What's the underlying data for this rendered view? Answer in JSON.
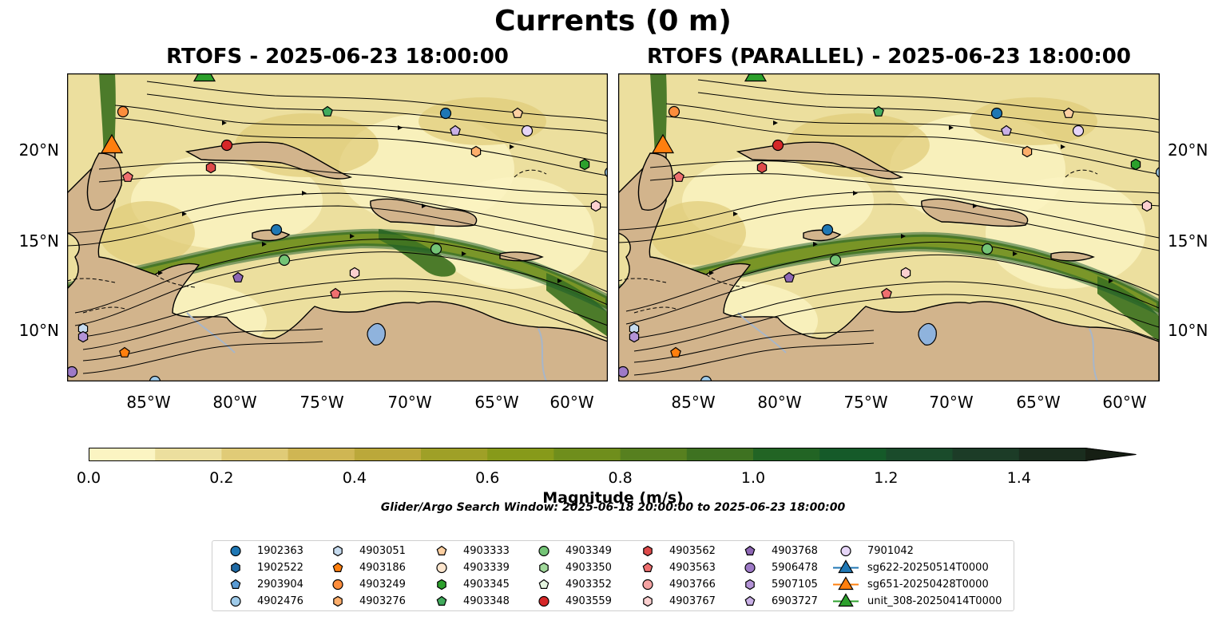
{
  "figure": {
    "title": "Currents (0 m)",
    "panels": [
      {
        "title": "RTOFS - 2025-06-23 18:00:00",
        "ocean_tone": "rtofs"
      },
      {
        "title": "RTOFS (PARALLEL) - 2025-06-23 18:00:00",
        "ocean_tone": "parallel"
      }
    ],
    "lon_ticks": [
      "85°W",
      "80°W",
      "75°W",
      "70°W",
      "65°W",
      "60°W"
    ],
    "lat_ticks": [
      "20°N",
      "15°N",
      "10°N"
    ],
    "colorbar": {
      "label": "Magnitude (m/s)",
      "ticks": [
        "0.0",
        "0.2",
        "0.4",
        "0.6",
        "0.8",
        "1.0",
        "1.2",
        "1.4"
      ],
      "range": [
        0,
        1.5
      ],
      "levels": [
        "#fbf4c2",
        "#ecdf9e",
        "#e0cb77",
        "#cfb653",
        "#bba83a",
        "#9fa027",
        "#879a1a",
        "#6f8e1c",
        "#57801f",
        "#3e7221",
        "#226424",
        "#155a29",
        "#1a4b2b",
        "#1c3c27",
        "#1a2d1e",
        "#161f14"
      ],
      "extend": "max"
    },
    "search_window": "Glider/Argo Search Window: 2025-06-18 20:00:00 to 2025-06-23 18:00:00",
    "colors": {
      "land": "#d2b48c",
      "lake": "#8fb3dd",
      "river": "#a7b6c9"
    }
  },
  "legend": [
    {
      "label": "1902363",
      "marker": "circle",
      "color": "#1f77b4"
    },
    {
      "label": "1902522",
      "marker": "hexagon",
      "color": "#1f6aa5"
    },
    {
      "label": "2903904",
      "marker": "pentagon",
      "color": "#5a9bd4"
    },
    {
      "label": "4902476",
      "marker": "circle",
      "color": "#9ecae9"
    },
    {
      "label": "4903051",
      "marker": "hexagon",
      "color": "#c6dbef"
    },
    {
      "label": "4903186",
      "marker": "pentagon",
      "color": "#ff7f0e"
    },
    {
      "label": "4903249",
      "marker": "circle",
      "color": "#fd8d3c"
    },
    {
      "label": "4903276",
      "marker": "hexagon",
      "color": "#fdae6b"
    },
    {
      "label": "4903333",
      "marker": "pentagon",
      "color": "#fdd0a2"
    },
    {
      "label": "4903339",
      "marker": "circle",
      "color": "#fee6ce"
    },
    {
      "label": "4903345",
      "marker": "hexagon",
      "color": "#2ca02c"
    },
    {
      "label": "4903348",
      "marker": "pentagon",
      "color": "#41ab5d"
    },
    {
      "label": "4903349",
      "marker": "circle",
      "color": "#74c476"
    },
    {
      "label": "4903350",
      "marker": "hexagon",
      "color": "#a1d99b"
    },
    {
      "label": "4903352",
      "marker": "pentagon",
      "color": "#e5f5e0"
    },
    {
      "label": "4903559",
      "marker": "circle",
      "color": "#d62728"
    },
    {
      "label": "4903562",
      "marker": "hexagon",
      "color": "#de4a4a"
    },
    {
      "label": "4903563",
      "marker": "pentagon",
      "color": "#ef6f6f"
    },
    {
      "label": "4903766",
      "marker": "circle",
      "color": "#f4a3a3"
    },
    {
      "label": "4903767",
      "marker": "hexagon",
      "color": "#fcd0d0"
    },
    {
      "label": "4903768",
      "marker": "pentagon",
      "color": "#8e67b5"
    },
    {
      "label": "5906478",
      "marker": "circle",
      "color": "#9e7ac7"
    },
    {
      "label": "5907105",
      "marker": "hexagon",
      "color": "#b393d6"
    },
    {
      "label": "6903727",
      "marker": "pentagon",
      "color": "#c9b0e6"
    },
    {
      "label": "7901042",
      "marker": "circle",
      "color": "#e6d5f7"
    },
    {
      "label": "sg622-20250514T0000",
      "marker": "triangle",
      "color": "#1f77b4"
    },
    {
      "label": "sg651-20250428T0000",
      "marker": "triangle",
      "color": "#ff7f0e"
    },
    {
      "label": "unit_308-20250414T0000",
      "marker": "triangle",
      "color": "#2ca02c"
    }
  ]
}
